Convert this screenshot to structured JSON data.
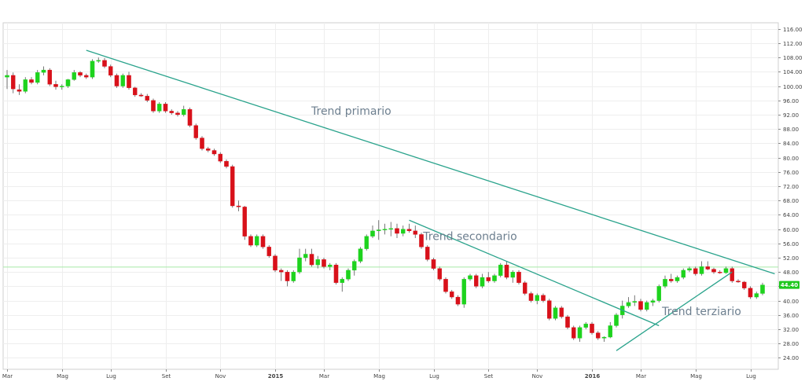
{
  "chart_data": {
    "type": "candlestick",
    "y_axis": {
      "position": "right",
      "ticks": [
        24.0,
        28.0,
        32.0,
        36.0,
        40.0,
        44.0,
        48.0,
        52.0,
        56.0,
        60.0,
        64.0,
        68.0,
        72.0,
        76.0,
        80.0,
        84.0,
        88.0,
        92.0,
        96.0,
        100.0,
        104.0,
        108.0,
        112.0,
        116.0
      ],
      "ylim": [
        20.8,
        117.7
      ],
      "decimals": 2
    },
    "x_axis": {
      "ticks": [
        {
          "label": "Mar",
          "bar": 0
        },
        {
          "label": "Mag",
          "bar": 9
        },
        {
          "label": "Lug",
          "bar": 17
        },
        {
          "label": "Set",
          "bar": 26
        },
        {
          "label": "Nov",
          "bar": 35
        },
        {
          "label": "2015",
          "bar": 44,
          "bold": true
        },
        {
          "label": "Mar",
          "bar": 52
        },
        {
          "label": "Mag",
          "bar": 61
        },
        {
          "label": "Lug",
          "bar": 70
        },
        {
          "label": "Set",
          "bar": 79
        },
        {
          "label": "Nov",
          "bar": 87
        },
        {
          "label": "2016",
          "bar": 96,
          "bold": true
        },
        {
          "label": "Mar",
          "bar": 104
        },
        {
          "label": "Mag",
          "bar": 113
        },
        {
          "label": "Lug",
          "bar": 122
        }
      ]
    },
    "last_price": {
      "value": 44.4,
      "label": "44.40"
    },
    "reference_line": {
      "value": 49.4
    },
    "candles": [
      {
        "o": 102.5,
        "h": 104.5,
        "l": 99.2,
        "c": 103.0
      },
      {
        "o": 103.0,
        "h": 103.8,
        "l": 98.0,
        "c": 99.2
      },
      {
        "o": 99.0,
        "h": 100.5,
        "l": 97.5,
        "c": 98.5
      },
      {
        "o": 98.5,
        "h": 102.5,
        "l": 98.0,
        "c": 101.8
      },
      {
        "o": 101.8,
        "h": 102.5,
        "l": 100.5,
        "c": 101.0
      },
      {
        "o": 101.0,
        "h": 104.5,
        "l": 100.5,
        "c": 103.8
      },
      {
        "o": 103.8,
        "h": 105.5,
        "l": 103.0,
        "c": 104.5
      },
      {
        "o": 104.5,
        "h": 105.0,
        "l": 100.0,
        "c": 100.5
      },
      {
        "o": 100.5,
        "h": 101.5,
        "l": 99.0,
        "c": 99.8
      },
      {
        "o": 99.8,
        "h": 100.5,
        "l": 99.0,
        "c": 100.0
      },
      {
        "o": 100.0,
        "h": 102.0,
        "l": 99.5,
        "c": 101.8
      },
      {
        "o": 101.8,
        "h": 104.5,
        "l": 101.5,
        "c": 103.8
      },
      {
        "o": 103.8,
        "h": 104.2,
        "l": 102.5,
        "c": 103.0
      },
      {
        "o": 103.0,
        "h": 103.5,
        "l": 102.0,
        "c": 102.5
      },
      {
        "o": 102.5,
        "h": 107.5,
        "l": 102.0,
        "c": 107.0
      },
      {
        "o": 107.0,
        "h": 108.0,
        "l": 106.5,
        "c": 107.2
      },
      {
        "o": 107.2,
        "h": 107.8,
        "l": 105.0,
        "c": 105.5
      },
      {
        "o": 105.5,
        "h": 106.0,
        "l": 102.5,
        "c": 103.0
      },
      {
        "o": 103.0,
        "h": 103.5,
        "l": 99.5,
        "c": 100.0
      },
      {
        "o": 100.0,
        "h": 103.5,
        "l": 99.5,
        "c": 103.0
      },
      {
        "o": 103.0,
        "h": 104.0,
        "l": 99.0,
        "c": 99.5
      },
      {
        "o": 99.5,
        "h": 99.8,
        "l": 97.0,
        "c": 97.5
      },
      {
        "o": 97.5,
        "h": 98.0,
        "l": 97.0,
        "c": 97.2
      },
      {
        "o": 97.2,
        "h": 97.8,
        "l": 95.5,
        "c": 96.0
      },
      {
        "o": 96.0,
        "h": 96.5,
        "l": 92.5,
        "c": 93.0
      },
      {
        "o": 93.0,
        "h": 95.5,
        "l": 92.5,
        "c": 95.0
      },
      {
        "o": 95.0,
        "h": 95.5,
        "l": 92.5,
        "c": 93.0
      },
      {
        "o": 93.0,
        "h": 93.5,
        "l": 92.0,
        "c": 92.5
      },
      {
        "o": 92.5,
        "h": 93.0,
        "l": 91.5,
        "c": 92.0
      },
      {
        "o": 92.0,
        "h": 94.5,
        "l": 91.5,
        "c": 93.5
      },
      {
        "o": 93.5,
        "h": 94.0,
        "l": 88.5,
        "c": 89.0
      },
      {
        "o": 89.0,
        "h": 89.5,
        "l": 85.0,
        "c": 85.5
      },
      {
        "o": 85.5,
        "h": 86.0,
        "l": 82.0,
        "c": 82.5
      },
      {
        "o": 82.5,
        "h": 83.0,
        "l": 81.5,
        "c": 82.0
      },
      {
        "o": 82.0,
        "h": 82.5,
        "l": 80.5,
        "c": 81.0
      },
      {
        "o": 81.0,
        "h": 81.5,
        "l": 78.5,
        "c": 79.0
      },
      {
        "o": 79.0,
        "h": 79.5,
        "l": 77.0,
        "c": 77.5
      },
      {
        "o": 77.5,
        "h": 78.0,
        "l": 66.0,
        "c": 66.5
      },
      {
        "o": 66.5,
        "h": 68.0,
        "l": 65.0,
        "c": 66.2
      },
      {
        "o": 66.2,
        "h": 66.5,
        "l": 57.0,
        "c": 58.0
      },
      {
        "o": 58.0,
        "h": 58.5,
        "l": 55.0,
        "c": 55.5
      },
      {
        "o": 55.5,
        "h": 58.5,
        "l": 55.0,
        "c": 58.0
      },
      {
        "o": 58.0,
        "h": 58.5,
        "l": 54.5,
        "c": 55.0
      },
      {
        "o": 55.0,
        "h": 55.5,
        "l": 52.0,
        "c": 52.5
      },
      {
        "o": 52.5,
        "h": 53.0,
        "l": 48.0,
        "c": 48.5
      },
      {
        "o": 48.5,
        "h": 49.0,
        "l": 45.5,
        "c": 48.0
      },
      {
        "o": 48.0,
        "h": 48.5,
        "l": 44.0,
        "c": 45.5
      },
      {
        "o": 45.5,
        "h": 48.5,
        "l": 45.0,
        "c": 48.0
      },
      {
        "o": 48.0,
        "h": 54.5,
        "l": 47.5,
        "c": 52.0
      },
      {
        "o": 52.0,
        "h": 54.5,
        "l": 51.0,
        "c": 53.0
      },
      {
        "o": 53.0,
        "h": 54.5,
        "l": 49.5,
        "c": 50.0
      },
      {
        "o": 50.0,
        "h": 52.5,
        "l": 49.0,
        "c": 51.5
      },
      {
        "o": 51.5,
        "h": 52.0,
        "l": 49.0,
        "c": 49.5
      },
      {
        "o": 49.5,
        "h": 50.5,
        "l": 48.5,
        "c": 50.0
      },
      {
        "o": 50.0,
        "h": 50.5,
        "l": 44.5,
        "c": 45.0
      },
      {
        "o": 45.0,
        "h": 46.5,
        "l": 42.5,
        "c": 46.0
      },
      {
        "o": 46.0,
        "h": 49.0,
        "l": 45.5,
        "c": 48.5
      },
      {
        "o": 48.5,
        "h": 51.5,
        "l": 47.0,
        "c": 51.0
      },
      {
        "o": 51.0,
        "h": 55.0,
        "l": 50.5,
        "c": 54.5
      },
      {
        "o": 54.5,
        "h": 58.5,
        "l": 54.0,
        "c": 58.0
      },
      {
        "o": 58.0,
        "h": 61.0,
        "l": 57.5,
        "c": 59.5
      },
      {
        "o": 59.5,
        "h": 62.5,
        "l": 57.0,
        "c": 59.8
      },
      {
        "o": 59.8,
        "h": 61.5,
        "l": 58.5,
        "c": 60.0
      },
      {
        "o": 60.0,
        "h": 62.0,
        "l": 58.0,
        "c": 60.2
      },
      {
        "o": 60.2,
        "h": 61.5,
        "l": 57.5,
        "c": 58.8
      },
      {
        "o": 58.8,
        "h": 61.0,
        "l": 58.0,
        "c": 60.0
      },
      {
        "o": 60.0,
        "h": 61.5,
        "l": 59.0,
        "c": 59.5
      },
      {
        "o": 59.5,
        "h": 61.0,
        "l": 57.5,
        "c": 58.5
      },
      {
        "o": 58.5,
        "h": 59.0,
        "l": 54.5,
        "c": 55.0
      },
      {
        "o": 55.0,
        "h": 55.5,
        "l": 51.0,
        "c": 51.5
      },
      {
        "o": 51.5,
        "h": 52.0,
        "l": 48.5,
        "c": 49.0
      },
      {
        "o": 49.0,
        "h": 49.5,
        "l": 45.5,
        "c": 46.0
      },
      {
        "o": 46.0,
        "h": 46.5,
        "l": 42.0,
        "c": 42.5
      },
      {
        "o": 42.5,
        "h": 43.0,
        "l": 40.5,
        "c": 41.0
      },
      {
        "o": 41.0,
        "h": 41.5,
        "l": 38.5,
        "c": 39.0
      },
      {
        "o": 39.0,
        "h": 46.5,
        "l": 38.0,
        "c": 46.0
      },
      {
        "o": 46.0,
        "h": 47.5,
        "l": 45.5,
        "c": 47.0
      },
      {
        "o": 47.0,
        "h": 47.5,
        "l": 43.5,
        "c": 44.0
      },
      {
        "o": 44.0,
        "h": 47.5,
        "l": 43.5,
        "c": 46.5
      },
      {
        "o": 46.5,
        "h": 48.0,
        "l": 45.0,
        "c": 45.5
      },
      {
        "o": 45.5,
        "h": 47.5,
        "l": 45.0,
        "c": 47.0
      },
      {
        "o": 47.0,
        "h": 50.5,
        "l": 46.5,
        "c": 50.0
      },
      {
        "o": 50.0,
        "h": 51.0,
        "l": 46.0,
        "c": 46.5
      },
      {
        "o": 46.5,
        "h": 48.5,
        "l": 45.0,
        "c": 48.0
      },
      {
        "o": 48.0,
        "h": 48.5,
        "l": 44.5,
        "c": 45.0
      },
      {
        "o": 45.0,
        "h": 45.5,
        "l": 41.5,
        "c": 42.0
      },
      {
        "o": 42.0,
        "h": 42.5,
        "l": 39.5,
        "c": 40.0
      },
      {
        "o": 40.0,
        "h": 42.0,
        "l": 39.0,
        "c": 41.5
      },
      {
        "o": 41.5,
        "h": 42.0,
        "l": 39.5,
        "c": 40.0
      },
      {
        "o": 40.0,
        "h": 40.5,
        "l": 34.5,
        "c": 35.0
      },
      {
        "o": 35.0,
        "h": 38.5,
        "l": 34.5,
        "c": 38.0
      },
      {
        "o": 38.0,
        "h": 38.5,
        "l": 35.0,
        "c": 35.5
      },
      {
        "o": 35.5,
        "h": 36.0,
        "l": 32.0,
        "c": 32.5
      },
      {
        "o": 32.5,
        "h": 33.0,
        "l": 29.0,
        "c": 29.5
      },
      {
        "o": 29.5,
        "h": 33.0,
        "l": 28.5,
        "c": 32.5
      },
      {
        "o": 32.5,
        "h": 34.0,
        "l": 32.0,
        "c": 33.5
      },
      {
        "o": 33.5,
        "h": 34.0,
        "l": 30.5,
        "c": 31.0
      },
      {
        "o": 31.0,
        "h": 31.5,
        "l": 29.0,
        "c": 29.5
      },
      {
        "o": 29.5,
        "h": 30.0,
        "l": 28.5,
        "c": 29.8
      },
      {
        "o": 29.8,
        "h": 34.0,
        "l": 29.5,
        "c": 33.0
      },
      {
        "o": 33.0,
        "h": 36.5,
        "l": 32.5,
        "c": 36.0
      },
      {
        "o": 36.0,
        "h": 40.0,
        "l": 35.0,
        "c": 38.5
      },
      {
        "o": 38.5,
        "h": 41.0,
        "l": 38.0,
        "c": 39.5
      },
      {
        "o": 39.5,
        "h": 41.5,
        "l": 38.5,
        "c": 39.8
      },
      {
        "o": 39.8,
        "h": 40.5,
        "l": 37.0,
        "c": 37.5
      },
      {
        "o": 37.5,
        "h": 40.0,
        "l": 37.0,
        "c": 39.5
      },
      {
        "o": 39.5,
        "h": 40.5,
        "l": 38.5,
        "c": 40.0
      },
      {
        "o": 40.0,
        "h": 44.5,
        "l": 39.5,
        "c": 44.0
      },
      {
        "o": 44.0,
        "h": 47.0,
        "l": 43.5,
        "c": 46.0
      },
      {
        "o": 46.0,
        "h": 47.5,
        "l": 45.0,
        "c": 45.5
      },
      {
        "o": 45.5,
        "h": 47.0,
        "l": 45.0,
        "c": 46.5
      },
      {
        "o": 46.5,
        "h": 49.0,
        "l": 46.0,
        "c": 48.5
      },
      {
        "o": 48.5,
        "h": 49.5,
        "l": 48.0,
        "c": 49.0
      },
      {
        "o": 49.0,
        "h": 49.5,
        "l": 47.0,
        "c": 47.5
      },
      {
        "o": 47.5,
        "h": 51.0,
        "l": 47.0,
        "c": 49.5
      },
      {
        "o": 49.5,
        "h": 51.0,
        "l": 48.5,
        "c": 48.8
      },
      {
        "o": 48.8,
        "h": 49.2,
        "l": 47.5,
        "c": 48.0
      },
      {
        "o": 48.0,
        "h": 48.5,
        "l": 47.5,
        "c": 47.8
      },
      {
        "o": 47.8,
        "h": 49.5,
        "l": 47.5,
        "c": 49.0
      },
      {
        "o": 49.0,
        "h": 49.5,
        "l": 45.0,
        "c": 45.5
      },
      {
        "o": 45.5,
        "h": 46.0,
        "l": 45.0,
        "c": 45.2
      },
      {
        "o": 45.2,
        "h": 45.5,
        "l": 43.0,
        "c": 43.5
      },
      {
        "o": 43.5,
        "h": 44.0,
        "l": 40.5,
        "c": 41.0
      },
      {
        "o": 41.0,
        "h": 42.5,
        "l": 40.5,
        "c": 42.0
      },
      {
        "o": 42.0,
        "h": 45.0,
        "l": 41.5,
        "c": 44.4
      }
    ],
    "trendlines": [
      {
        "name": "Trend primario",
        "from": {
          "bar": 13,
          "value": 110.0
        },
        "to": {
          "bar": 126,
          "value": 47.5
        }
      },
      {
        "name": "Trend secondario",
        "from": {
          "bar": 66,
          "value": 62.5
        },
        "to": {
          "bar": 107,
          "value": 33.0
        }
      },
      {
        "name": "Trend terziario",
        "from": {
          "bar": 100,
          "value": 26.0
        },
        "to": {
          "bar": 119,
          "value": 48.0
        }
      }
    ],
    "annotations": [
      {
        "text": "Trend primario",
        "bar": 56.5,
        "value": 92.0
      },
      {
        "text": "Trend secondario",
        "bar": 76,
        "value": 57.0
      },
      {
        "text": "Trend terziario",
        "bar": 114,
        "value": 36.0
      }
    ],
    "colors": {
      "up": "#1ed31e",
      "down": "#d8111a",
      "trend": "#2aa38c",
      "reference": "#a8eaa8",
      "grid": "#eeeeee",
      "price_badge": "#1ec81e"
    }
  }
}
